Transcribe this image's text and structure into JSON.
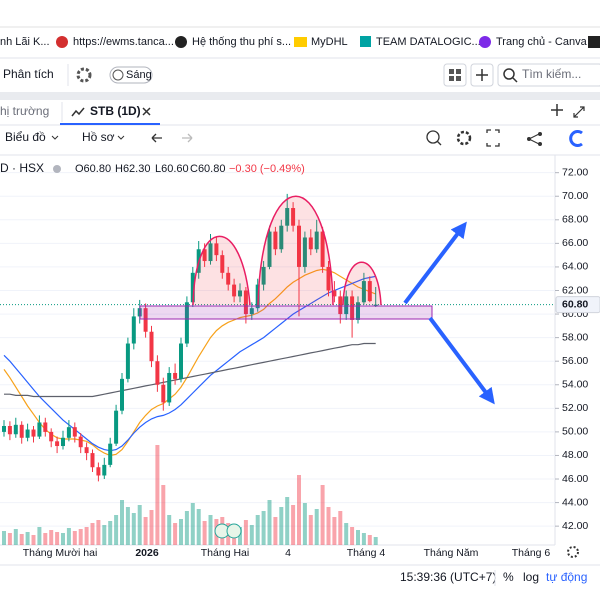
{
  "bookmarks": [
    "nh Lãi K...",
    "https://ewms.tanca...",
    "Hệ thống thu phí s...",
    "MyDHL",
    "TEAM DATALOGIC...",
    "Trang chủ - Canva"
  ],
  "toolbar": {
    "analysis": "Phân tích",
    "theme": "Sáng",
    "search": "Tìm kiếm..."
  },
  "tabs": [
    "hị trường",
    "STB (1D)"
  ],
  "chart_toolbar": {
    "chart": "Biểu đồ",
    "profile": "Hồ sơ"
  },
  "chart_data": {
    "type": "candlestick",
    "symbol_legend": "D · HSX",
    "ohlc_legend": [
      "O60.80",
      "H62.30",
      "L60.60",
      "C60.80"
    ],
    "change": "−0.30 (−0.49%)",
    "x_labels": [
      "Tháng Mười hai",
      "2026",
      "Tháng Hai",
      "4",
      "Tháng 4",
      "Tháng Năm",
      "Tháng 6"
    ],
    "ylim": [
      40.4,
      73.5
    ],
    "yticks": [
      {
        "value": 42,
        "label": "42.00"
      },
      {
        "value": 44,
        "label": "44.00"
      },
      {
        "value": 46,
        "label": "46.00"
      },
      {
        "value": 48,
        "label": "48.00"
      },
      {
        "value": 50,
        "label": "50.00"
      },
      {
        "value": 52,
        "label": "52.00"
      },
      {
        "value": 54,
        "label": "54.00"
      },
      {
        "value": 56,
        "label": "56.00"
      },
      {
        "value": 58,
        "label": "58.00"
      },
      {
        "value": 60,
        "label": "60.00"
      },
      {
        "value": 62,
        "label": "62.00"
      },
      {
        "value": 64,
        "label": "64.00"
      },
      {
        "value": 66,
        "label": "66.00"
      },
      {
        "value": 68,
        "label": "68.00"
      },
      {
        "value": 70,
        "label": "70.00"
      },
      {
        "value": 72,
        "label": "72.00"
      }
    ],
    "grid": true,
    "last_price": {
      "value": 60.8,
      "label": "60.80"
    },
    "up_color": "#089981",
    "down_color": "#f23645",
    "open": [
      50.0,
      50.5,
      49.8,
      50.6,
      49.5,
      50.2,
      49.6,
      50.8,
      50.0,
      49.2,
      48.8,
      49.5,
      50.4,
      49.6,
      48.7,
      48.2,
      47.0,
      46.3,
      47.2,
      49.0,
      51.8,
      54.5,
      57.5,
      59.8,
      60.5,
      58.5,
      56.0,
      54.0,
      52.5,
      55.0,
      54.5,
      57.5,
      61.0,
      63.5,
      65.5,
      64.5,
      66.0,
      65.0,
      63.5,
      62.5,
      61.5,
      62.0,
      60.0,
      60.5,
      62.5,
      64.0,
      67.0,
      65.5,
      67.5,
      69.0,
      67.5,
      64.0,
      66.5,
      65.5,
      67.0,
      64.0,
      62.0,
      61.5,
      60.0,
      61.5,
      59.5,
      61.0,
      62.8,
      60.8
    ],
    "high": [
      51.0,
      50.9,
      51.2,
      50.9,
      50.7,
      50.5,
      51.4,
      51.2,
      50.3,
      49.6,
      50.1,
      51.0,
      50.8,
      49.9,
      49.1,
      48.5,
      47.4,
      47.8,
      49.5,
      52.3,
      55.0,
      58.0,
      60.5,
      61.2,
      60.9,
      59.0,
      56.5,
      54.6,
      55.5,
      55.8,
      58.0,
      61.5,
      64.0,
      66.2,
      66.0,
      66.8,
      66.5,
      65.4,
      64.0,
      63.0,
      62.6,
      62.3,
      61.0,
      63.0,
      64.5,
      67.5,
      67.4,
      68.0,
      70.2,
      69.5,
      68.0,
      67.0,
      67.2,
      68.0,
      67.4,
      64.5,
      62.8,
      62.0,
      62.0,
      62.0,
      61.5,
      63.5,
      63.2,
      62.3
    ],
    "low": [
      49.6,
      49.3,
      49.5,
      49.0,
      49.2,
      49.1,
      49.4,
      49.6,
      48.7,
      48.2,
      48.5,
      49.2,
      49.1,
      48.2,
      47.6,
      46.6,
      45.8,
      46.0,
      47.0,
      48.8,
      51.5,
      54.2,
      57.0,
      59.2,
      58.0,
      55.5,
      53.4,
      51.8,
      52.2,
      54.0,
      54.2,
      57.2,
      60.6,
      63.0,
      64.0,
      64.2,
      64.5,
      63.0,
      62.0,
      61.0,
      61.0,
      59.2,
      59.5,
      60.2,
      62.0,
      63.8,
      65.0,
      65.2,
      67.0,
      67.0,
      59.8,
      63.5,
      65.0,
      65.2,
      63.5,
      61.5,
      61.0,
      59.2,
      59.5,
      58.0,
      59.2,
      60.8,
      61.0,
      60.6
    ],
    "close": [
      50.5,
      49.8,
      50.6,
      49.5,
      50.2,
      49.6,
      50.8,
      50.0,
      49.2,
      48.8,
      49.5,
      50.4,
      49.6,
      48.7,
      48.2,
      47.0,
      46.3,
      47.2,
      49.0,
      51.8,
      54.5,
      57.5,
      59.8,
      60.5,
      58.5,
      56.0,
      54.0,
      52.5,
      55.0,
      54.5,
      57.5,
      61.0,
      63.5,
      65.5,
      64.5,
      66.0,
      65.0,
      63.5,
      62.5,
      61.5,
      62.0,
      60.0,
      60.5,
      62.5,
      64.0,
      67.0,
      65.5,
      67.5,
      69.0,
      67.5,
      64.0,
      66.5,
      65.5,
      67.0,
      64.0,
      62.0,
      61.5,
      60.0,
      61.5,
      59.5,
      61.0,
      62.8,
      61.1,
      60.8
    ],
    "volume": [
      14,
      12,
      16,
      11,
      13,
      10,
      18,
      12,
      15,
      13,
      12,
      17,
      14,
      16,
      18,
      22,
      25,
      20,
      24,
      30,
      45,
      38,
      32,
      40,
      28,
      35,
      100,
      60,
      30,
      22,
      26,
      34,
      42,
      36,
      24,
      30,
      26,
      28,
      22,
      20,
      18,
      25,
      20,
      30,
      34,
      45,
      28,
      38,
      48,
      40,
      70,
      42,
      30,
      36,
      60,
      38,
      28,
      34,
      22,
      18,
      15,
      12,
      10,
      8
    ],
    "moving_averages": [
      {
        "color": "#f7a21b",
        "values": [
          55.3,
          54.6,
          53.8,
          53.0,
          52.2,
          51.5,
          50.8,
          50.2,
          49.8,
          49.5,
          49.4,
          49.4,
          49.4,
          49.3,
          49.2,
          48.9,
          48.5,
          48.2,
          48.0,
          48.1,
          48.5,
          49.2,
          50.0,
          50.8,
          51.4,
          51.9,
          52.2,
          52.4,
          52.8,
          53.2,
          53.8,
          54.6,
          55.5,
          56.4,
          57.2,
          58.0,
          58.6,
          59.0,
          59.3,
          59.5,
          59.7,
          59.8,
          59.9,
          60.1,
          60.4,
          60.9,
          61.3,
          61.8,
          62.3,
          62.7,
          63.0,
          63.3,
          63.5,
          63.7,
          63.8,
          63.7,
          63.5,
          63.2,
          62.9,
          62.6,
          62.3,
          62.1,
          61.9,
          61.7
        ]
      },
      {
        "color": "#2962ff",
        "values": [
          56.5,
          56.0,
          55.4,
          54.8,
          54.2,
          53.6,
          53.0,
          52.5,
          52.0,
          51.5,
          51.0,
          50.6,
          50.2,
          49.8,
          49.4,
          49.0,
          48.7,
          48.5,
          48.4,
          48.5,
          48.8,
          49.3,
          49.9,
          50.4,
          50.8,
          51.1,
          51.3,
          51.4,
          51.6,
          51.9,
          52.3,
          52.8,
          53.3,
          53.8,
          54.3,
          54.8,
          55.2,
          55.6,
          56.0,
          56.4,
          56.8,
          57.1,
          57.4,
          57.7,
          58.0,
          58.4,
          58.8,
          59.2,
          59.6,
          60.0,
          60.3,
          60.6,
          60.9,
          61.2,
          61.5,
          61.8,
          62.0,
          62.2,
          62.4,
          62.6,
          62.8,
          63.0,
          63.1,
          63.2
        ]
      },
      {
        "color": "#5d606b",
        "values": [
          53.2,
          53.2,
          53.1,
          53.1,
          53.1,
          53.0,
          53.0,
          53.0,
          53.0,
          53.0,
          53.0,
          53.0,
          53.0,
          53.0,
          53.0,
          53.0,
          53.1,
          53.2,
          53.3,
          53.4,
          53.5,
          53.6,
          53.7,
          53.8,
          53.9,
          54.0,
          54.1,
          54.2,
          54.3,
          54.4,
          54.5,
          54.6,
          54.7,
          54.8,
          54.9,
          55.0,
          55.1,
          55.2,
          55.3,
          55.4,
          55.5,
          55.6,
          55.7,
          55.8,
          55.9,
          56.0,
          56.1,
          56.2,
          56.3,
          56.4,
          56.5,
          56.6,
          56.7,
          56.8,
          56.9,
          57.0,
          57.1,
          57.2,
          57.3,
          57.4,
          57.4,
          57.5,
          57.5,
          57.5
        ]
      }
    ]
  },
  "status": {
    "time": "15:39:36 (UTC+7)",
    "percent": "%",
    "log": "log",
    "auto": "tự động"
  }
}
